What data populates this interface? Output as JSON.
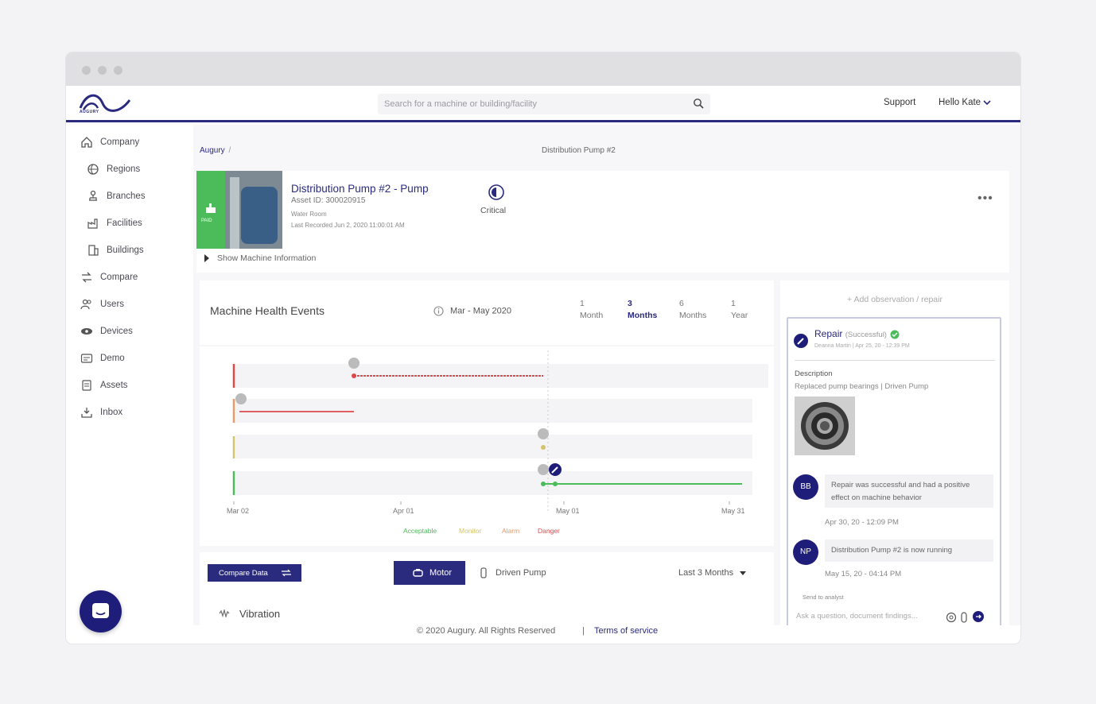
{
  "header": {
    "logo_text": "AUGURY",
    "search_placeholder": "Search for a machine or building/facility",
    "support_label": "Support",
    "user_label": "Hello Kate"
  },
  "sidebar": {
    "items": [
      {
        "label": "Company",
        "icon": "home-icon"
      },
      {
        "label": "Regions",
        "icon": "globe-icon"
      },
      {
        "label": "Branches",
        "icon": "tree-icon"
      },
      {
        "label": "Facilities",
        "icon": "factory-icon"
      },
      {
        "label": "Buildings",
        "icon": "building-icon"
      },
      {
        "label": "Compare",
        "icon": "compare-icon"
      },
      {
        "label": "Users",
        "icon": "users-icon"
      },
      {
        "label": "Devices",
        "icon": "device-icon"
      },
      {
        "label": "Demo",
        "icon": "demo-icon"
      },
      {
        "label": "Assets",
        "icon": "assets-icon"
      },
      {
        "label": "Inbox",
        "icon": "inbox-icon"
      }
    ]
  },
  "breadcrumb": {
    "root": "Augury",
    "separator": "/",
    "current": "Distribution Pump #2"
  },
  "machine": {
    "name": "Distribution Pump #2 - Pump",
    "asset_id": "Asset ID: 300020915",
    "room": "Water Room",
    "last_recorded": "Last Recorded Jun 2, 2020 11:00:01 AM",
    "badge": "PAID",
    "criticality": "Critical",
    "more_label": "•••",
    "show_info": "Show Machine Information"
  },
  "events": {
    "title": "Machine Health Events",
    "date_range": "Mar - May 2020",
    "periods": [
      {
        "num": "1",
        "unit": "Month"
      },
      {
        "num": "3",
        "unit": "Months"
      },
      {
        "num": "6",
        "unit": "Months"
      },
      {
        "num": "1",
        "unit": "Year"
      }
    ],
    "active_period": 1
  },
  "chart_data": {
    "type": "timeline",
    "x_ticks": [
      "Mar 02",
      "Apr 01",
      "May 01",
      "May 31"
    ],
    "legend": [
      {
        "label": "Acceptable",
        "color": "#4cbb5a"
      },
      {
        "label": "Monitor",
        "color": "#d4c36a"
      },
      {
        "label": "Alarm",
        "color": "#e89a6a"
      },
      {
        "label": "Danger",
        "color": "#e04848"
      }
    ]
  },
  "controls": {
    "compare_label": "Compare Data",
    "motor_label": "Motor",
    "driven_label": "Driven Pump",
    "range_label": "Last 3 Months"
  },
  "vibration": {
    "title": "Vibration"
  },
  "side": {
    "add_label": "+ Add observation / repair",
    "repair_title": "Repair",
    "repair_status": "(Successful)",
    "repair_sub": "Deanna Martin | Apr 25, 20 - 12:39 PM",
    "description_heading": "Description",
    "description": "Replaced pump bearings | Driven Pump",
    "comments": [
      {
        "initials": "BB",
        "text": "Repair was successful and had a positive effect on machine behavior",
        "time": "Apr 30, 20 - 12:09 PM"
      },
      {
        "initials": "NP",
        "text": "Distribution Pump #2 is now running",
        "time": "May 15, 20 - 04:14 PM"
      }
    ],
    "send_label": "Send to analyst",
    "ask_placeholder": "Ask a question, document findings..."
  },
  "footer": {
    "copyright": "© 2020 Augury.   All Rights Reserved",
    "separator": "|",
    "terms": "Terms of service"
  },
  "colors": {
    "brand": "#2a2a7e",
    "acceptable": "#4cbb5a",
    "monitor": "#d4c36a",
    "alarm": "#e89a6a",
    "danger": "#e04848"
  }
}
